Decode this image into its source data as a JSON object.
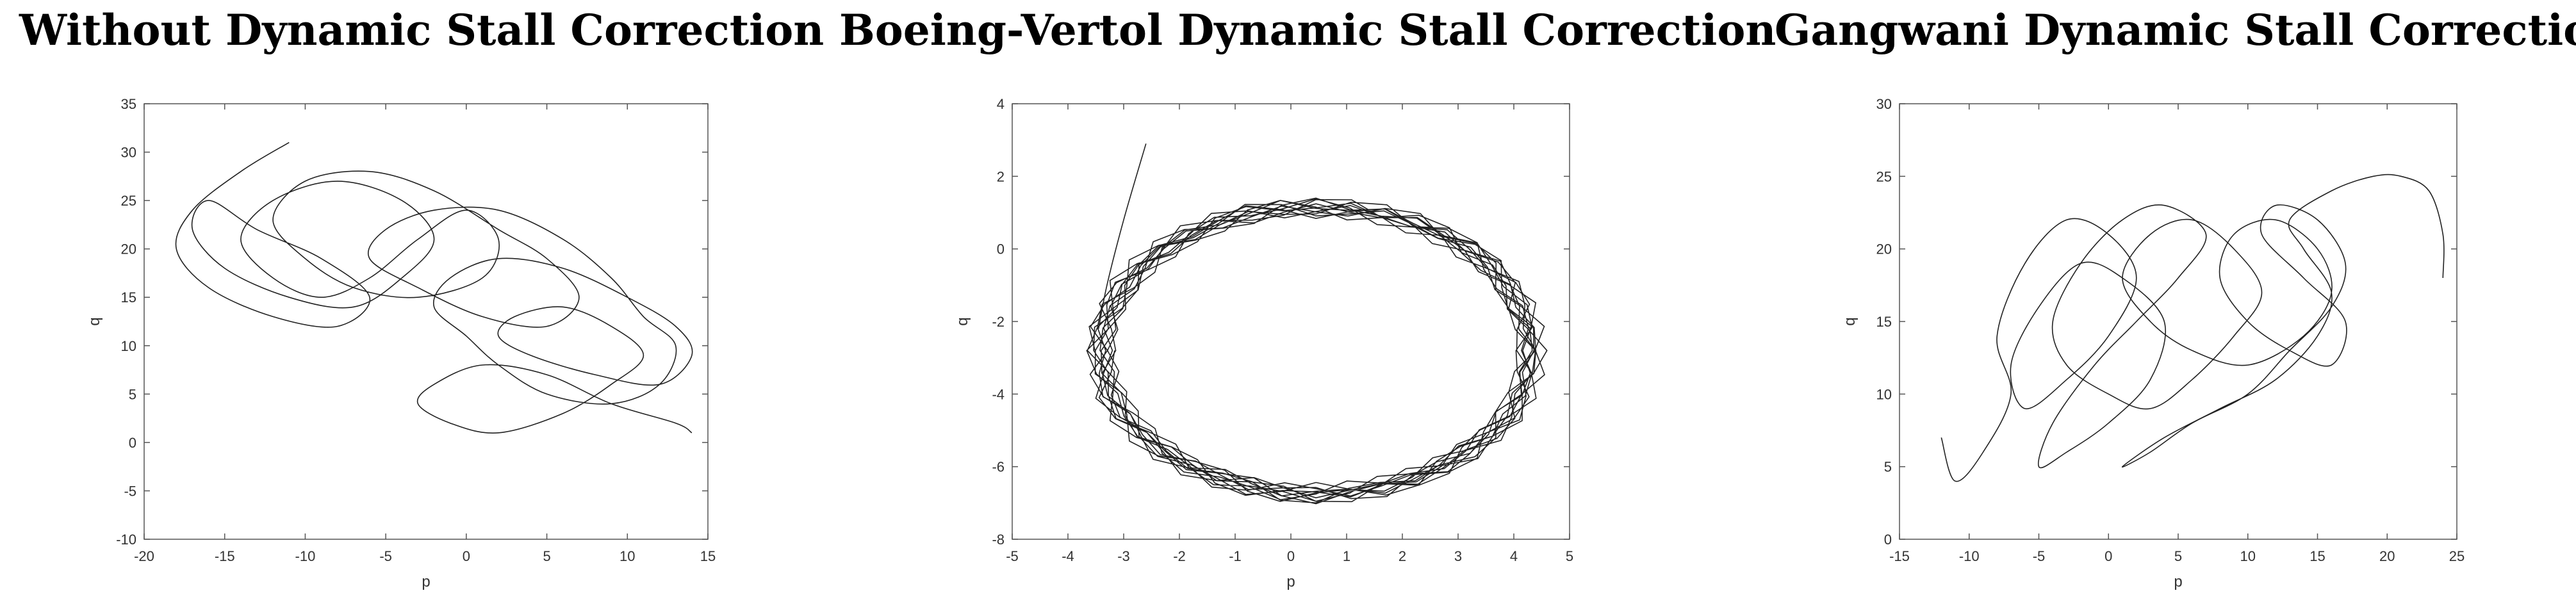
{
  "chart_data": [
    {
      "type": "line",
      "title": "Without Dynamic Stall Correction",
      "xlabel": "p",
      "ylabel": "q",
      "xlim": [
        -20,
        15
      ],
      "ylim": [
        -10,
        35
      ],
      "xticks": [
        -20,
        -15,
        -10,
        -5,
        0,
        5,
        10,
        15
      ],
      "yticks": [
        -10,
        -5,
        0,
        5,
        10,
        15,
        20,
        25,
        30,
        35
      ],
      "grid": false,
      "series": [
        {
          "x": [
            -11,
            -14,
            -17,
            -18,
            -16,
            -12,
            -8,
            -6,
            -9,
            -13,
            -16,
            -17,
            -15,
            -11,
            -7,
            -4,
            -2,
            -4,
            -8,
            -12,
            -14,
            -12,
            -9,
            -6,
            -3,
            0,
            2,
            1,
            -3,
            -7,
            -10,
            -12,
            -10,
            -6,
            -2,
            2,
            5,
            7,
            5,
            1,
            -3,
            -6,
            -5,
            -2,
            2,
            6,
            9,
            11,
            13,
            12,
            9,
            5,
            2,
            0,
            -2,
            -1,
            2,
            6,
            10,
            13,
            14,
            12,
            8,
            4,
            2,
            3,
            6,
            9,
            11,
            9,
            6,
            2,
            -1,
            -3,
            -2,
            1,
            5,
            9,
            13,
            14
          ],
          "y": [
            31,
            28,
            24,
            20,
            16,
            13,
            12,
            15,
            19,
            22,
            25,
            22,
            18,
            15,
            14,
            17,
            21,
            25,
            27,
            25,
            21,
            17,
            15,
            17,
            21,
            24,
            21,
            17,
            15,
            16,
            19,
            23,
            27,
            28,
            26,
            22,
            19,
            15,
            12,
            13,
            16,
            19,
            22,
            24,
            24,
            21,
            17,
            13,
            10,
            6,
            4,
            5,
            8,
            11,
            14,
            17,
            19,
            18,
            15,
            12,
            9,
            6,
            7,
            9,
            11,
            13,
            14,
            12,
            9,
            6,
            3,
            1,
            2,
            4,
            6,
            8,
            7,
            4,
            2,
            1
          ]
        }
      ]
    },
    {
      "type": "line",
      "title": "Boeing-Vertol Dynamic Stall Correction",
      "xlabel": "p",
      "ylabel": "q",
      "xlim": [
        -5,
        5
      ],
      "ylim": [
        -8,
        4
      ],
      "xticks": [
        -5,
        -4,
        -3,
        -2,
        -1,
        0,
        1,
        2,
        3,
        4,
        5
      ],
      "yticks": [
        -8,
        -6,
        -4,
        -2,
        0,
        2,
        4
      ],
      "grid": false,
      "limit_cycle": {
        "center": [
          0.45,
          -2.8
        ],
        "semi_axes": [
          3.85,
          3.95
        ],
        "loops": 12
      },
      "series": [
        {
          "x": [
            -2.6,
            -3.0,
            -3.3,
            -3.45
          ],
          "y": [
            2.9,
            0.8,
            -1.0,
            -2.2
          ]
        }
      ]
    },
    {
      "type": "line",
      "title": "Gangwani Dynamic Stall Correction",
      "xlabel": "p",
      "ylabel": "q",
      "xlim": [
        -15,
        25
      ],
      "ylim": [
        0,
        30
      ],
      "xticks": [
        -15,
        -10,
        -5,
        0,
        5,
        10,
        15,
        20,
        25
      ],
      "yticks": [
        0,
        5,
        10,
        15,
        20,
        25,
        30
      ],
      "grid": false,
      "series": [
        {
          "x": [
            -12,
            -11,
            -9,
            -7,
            -8,
            -6,
            -3,
            0,
            2,
            0,
            -3,
            -6,
            -7,
            -5,
            -2,
            1,
            4,
            3,
            0,
            -3,
            -5,
            -4,
            -1,
            2,
            5,
            7,
            4,
            1,
            -2,
            -4,
            -3,
            0,
            3,
            6,
            9,
            11,
            9,
            6,
            3,
            1,
            3,
            6,
            10,
            14,
            16,
            15,
            12,
            9,
            8,
            10,
            13,
            16,
            17,
            14,
            11,
            12,
            15,
            17,
            16,
            13,
            10,
            6,
            3,
            1,
            4,
            8,
            12,
            15,
            16,
            14,
            13,
            16,
            19,
            21,
            23,
            24,
            24
          ],
          "y": [
            7,
            4,
            6,
            10,
            14,
            19,
            22,
            21,
            18,
            14,
            11,
            9,
            12,
            16,
            19,
            18,
            15,
            11,
            8,
            6,
            5,
            8,
            12,
            15,
            18,
            21,
            23,
            22,
            19,
            15,
            12,
            10,
            9,
            11,
            14,
            17,
            20,
            22,
            21,
            18,
            15,
            13,
            12,
            14,
            17,
            20,
            22,
            21,
            18,
            15,
            13,
            12,
            15,
            18,
            21,
            23,
            22,
            19,
            16,
            13,
            10,
            8,
            6,
            5,
            7,
            9,
            11,
            14,
            17,
            20,
            22,
            24,
            25,
            25,
            24,
            21,
            18
          ]
        }
      ]
    }
  ]
}
